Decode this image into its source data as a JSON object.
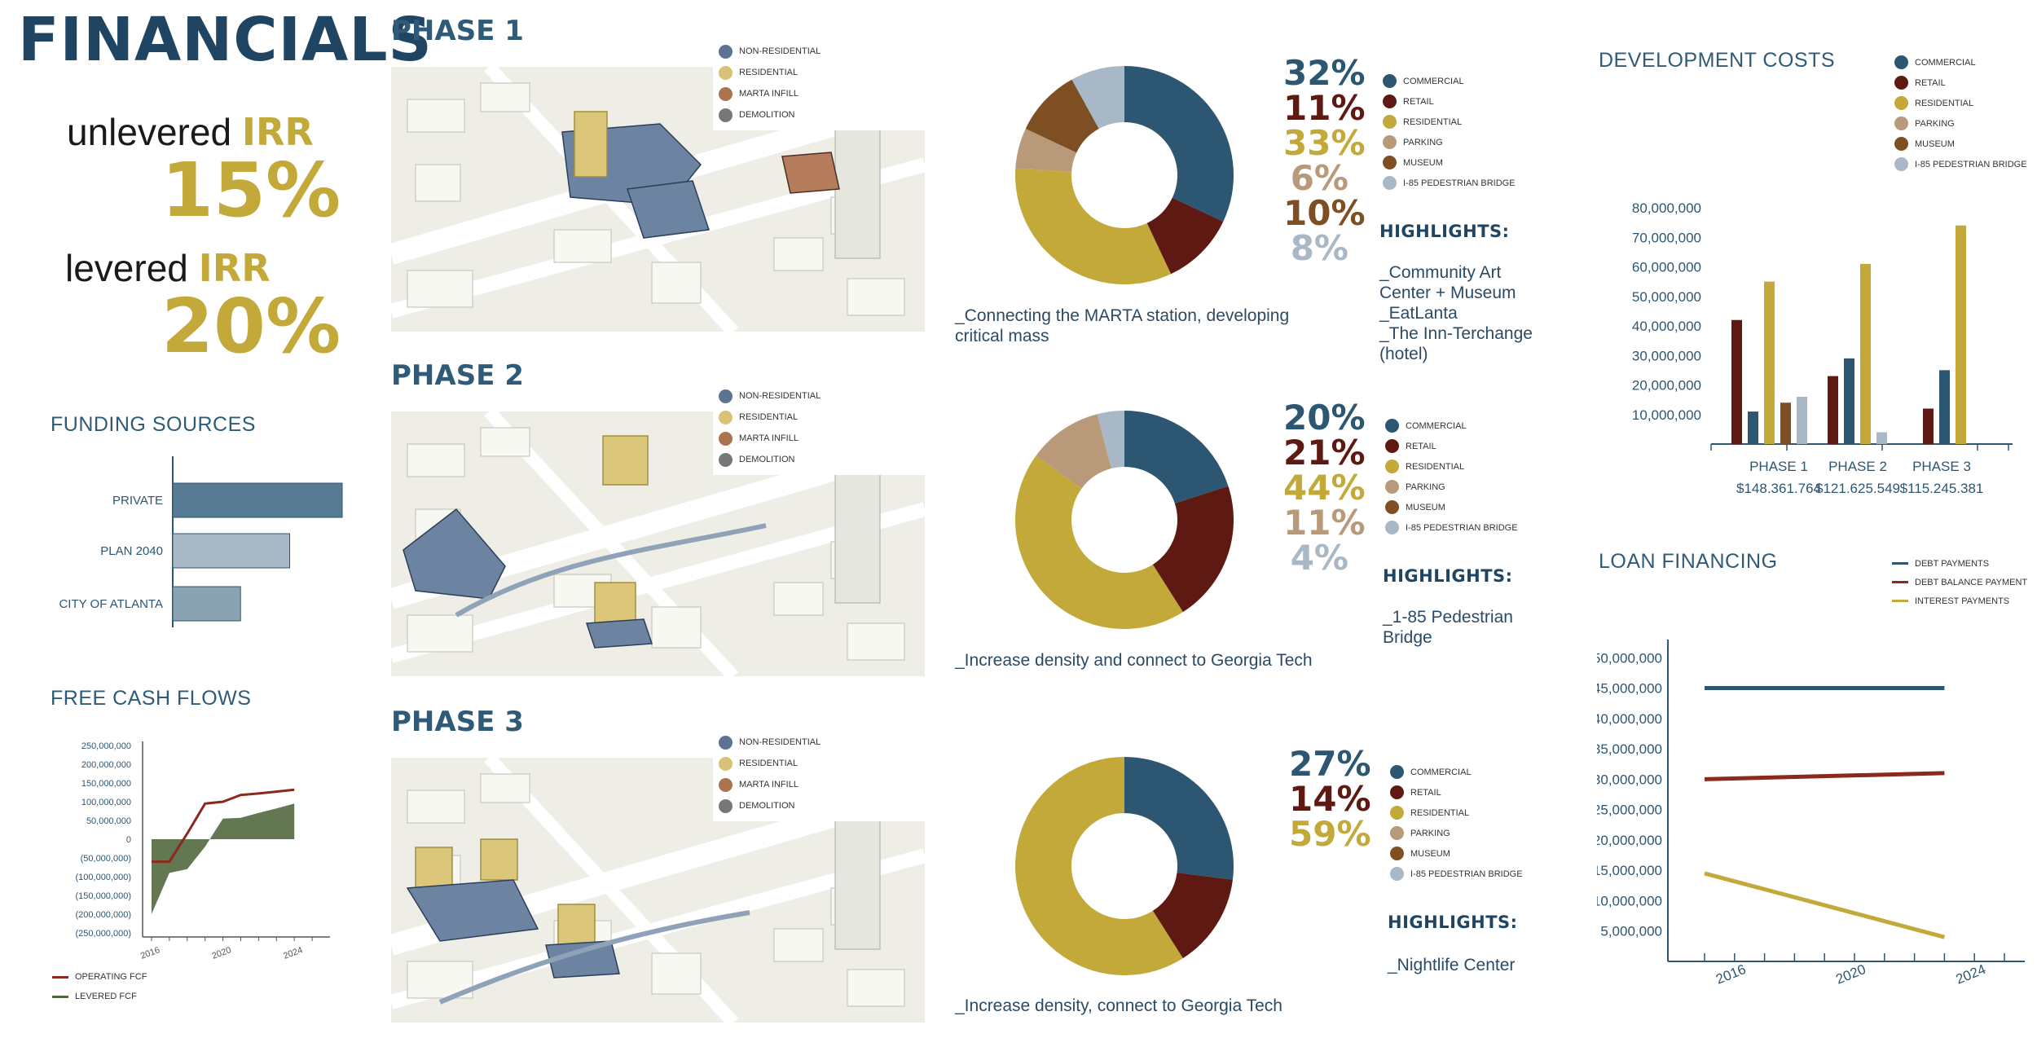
{
  "title": "FINANCIALS",
  "irr": {
    "unlevered_label": "unlevered",
    "unlevered_suffix": "IRR",
    "unlevered_value": "15%",
    "levered_label": "levered",
    "levered_suffix": "IRR",
    "levered_value": "20%"
  },
  "colors": {
    "commercial": "#2d5672",
    "retail": "#5e1a12",
    "residential": "#c3a83a",
    "parking": "#b89a7a",
    "museum": "#7d4f22",
    "bridge": "#a9b8c6",
    "navy": "#1f4563"
  },
  "map_legend": [
    "NON-RESIDENTIAL",
    "RESIDENTIAL",
    "MARTA INFILL",
    "DEMOLITION"
  ],
  "category_legend": [
    "COMMERCIAL",
    "RETAIL",
    "RESIDENTIAL",
    "PARKING",
    "MUSEUM",
    "I-85 PEDESTRIAN BRIDGE"
  ],
  "highlights_label": "HIGHLIGHTS:",
  "phases": [
    {
      "title": "PHASE 1",
      "percents": [
        "32%",
        "11%",
        "33%",
        "6%",
        "10%",
        "8%"
      ],
      "caption": "_Connecting the MARTA station, developing critical mass",
      "highlights": "_Community Art\nCenter + Museum\n_EatLanta\n_The Inn-Terchange\n(hotel)"
    },
    {
      "title": "PHASE 2",
      "percents": [
        "20%",
        "21%",
        "44%",
        "11%",
        "4%"
      ],
      "caption": "_Increase density and connect to Georgia Tech",
      "highlights": "_1-85 Pedestrian\nBridge"
    },
    {
      "title": "PHASE 3",
      "percents": [
        "27%",
        "14%",
        "59%"
      ],
      "caption": "_Increase density, connect to Georgia Tech",
      "highlights": "_Nightlife Center"
    }
  ],
  "funding": {
    "title": "FUNDING SOURCES"
  },
  "fcf": {
    "title": "FREE CASH FLOWS",
    "legend": [
      "OPERATING FCF",
      "LEVERED FCF"
    ]
  },
  "dev_costs": {
    "title": "DEVELOPMENT COSTS",
    "totals": [
      "$148,361,764",
      "$121,625,549",
      "$115,245,381"
    ]
  },
  "loan": {
    "title": "LOAN FINANCING",
    "legend": [
      "DEBT PAYMENTS",
      "DEBT BALANCE PAYMENT",
      "INTEREST PAYMENTS"
    ]
  },
  "chart_data": [
    {
      "type": "pie",
      "title": "PHASE 1",
      "labels": [
        "COMMERCIAL",
        "RETAIL",
        "RESIDENTIAL",
        "PARKING",
        "MUSEUM",
        "I-85 PEDESTRIAN BRIDGE"
      ],
      "values": [
        32,
        11,
        33,
        6,
        10,
        8
      ]
    },
    {
      "type": "pie",
      "title": "PHASE 2",
      "labels": [
        "COMMERCIAL",
        "RETAIL",
        "RESIDENTIAL",
        "MUSEUM",
        "I-85 PEDESTRIAN BRIDGE"
      ],
      "values": [
        20,
        21,
        44,
        11,
        4
      ]
    },
    {
      "type": "pie",
      "title": "PHASE 3",
      "labels": [
        "COMMERCIAL",
        "RETAIL",
        "RESIDENTIAL"
      ],
      "values": [
        27,
        14,
        59
      ]
    },
    {
      "type": "bar",
      "title": "FUNDING SOURCES",
      "orientation": "horizontal",
      "categories": [
        "PRIVATE",
        "PLAN 2040",
        "CITY OF ATLANTA"
      ],
      "values": [
        100,
        69,
        40
      ],
      "colors": [
        "#557a91",
        "#a9b8c6",
        "#8aa3b3"
      ]
    },
    {
      "type": "area",
      "title": "FREE CASH FLOWS",
      "xlim": [
        2015.5,
        2026
      ],
      "x_ticks": [
        "2016",
        "2020",
        "2024"
      ],
      "x_tick_values": [
        2016,
        2020,
        2024
      ],
      "ylim": [
        -250000000,
        250000000
      ],
      "y_ticks": [
        "250,000,000",
        "200,000,000",
        "150,000,000",
        "100,000,000",
        "50,000,000",
        "0",
        "(50,000,000)",
        "(100,000,000)",
        "(150,000,000)",
        "(200,000,000)",
        "(250,000,000)"
      ],
      "y_tick_values": [
        250000000,
        200000000,
        150000000,
        100000000,
        50000000,
        0,
        -50000000,
        -100000000,
        -150000000,
        -200000000,
        -250000000
      ],
      "series": [
        {
          "name": "OPERATING FCF",
          "color": "#8b2a1c",
          "style": "line",
          "x": [
            2016,
            2017,
            2018,
            2019,
            2020,
            2021,
            2022,
            2023,
            2024
          ],
          "y": [
            -60000000,
            -60000000,
            15000000,
            95000000,
            100000000,
            118000000,
            122000000,
            127000000,
            132000000
          ]
        },
        {
          "name": "LEVERED FCF",
          "color": "#52683f",
          "style": "area",
          "x": [
            2016,
            2017,
            2018,
            2019,
            2020,
            2021,
            2022,
            2023,
            2024
          ],
          "y": [
            -200000000,
            -90000000,
            -80000000,
            -20000000,
            55000000,
            57000000,
            70000000,
            82000000,
            95000000
          ]
        }
      ]
    },
    {
      "type": "bar",
      "title": "DEVELOPMENT COSTS",
      "categories": [
        "PHASE 1",
        "PHASE 2",
        "PHASE 3"
      ],
      "ylim": [
        0,
        80000000
      ],
      "y_ticks": [
        "80,000,000",
        "70,000,000",
        "60,000,000",
        "50,000,000",
        "40,000,000",
        "30,000,000",
        "20,000,000",
        "10,000,000"
      ],
      "y_tick_values": [
        80000000,
        70000000,
        60000000,
        50000000,
        40000000,
        30000000,
        20000000,
        10000000
      ],
      "series": [
        {
          "name": "RETAIL",
          "color": "#5e1a12",
          "values": [
            42000000,
            23000000,
            12000000
          ]
        },
        {
          "name": "COMMERCIAL",
          "color": "#2d5672",
          "values": [
            11000000,
            29000000,
            25000000
          ]
        },
        {
          "name": "RESIDENTIAL",
          "color": "#c3a83a",
          "values": [
            55000000,
            61000000,
            74000000
          ]
        },
        {
          "name": "MUSEUM",
          "color": "#7d4f22",
          "values": [
            14000000,
            0,
            0
          ]
        },
        {
          "name": "I-85 PEDESTRIAN BRIDGE",
          "color": "#a9b8c6",
          "values": [
            16000000,
            4000000,
            0
          ]
        }
      ],
      "legend": [
        "COMMERCIAL",
        "RETAIL",
        "RESIDENTIAL",
        "PARKING",
        "MUSEUM",
        "I-85 PEDESTRIAN BRIDGE"
      ]
    },
    {
      "type": "line",
      "title": "LOAN FINANCING",
      "xlim": [
        2015,
        2025
      ],
      "x_ticks": [
        "2016",
        "2020",
        "2024"
      ],
      "x_tick_values": [
        2016,
        2020,
        2024
      ],
      "ylim": [
        0,
        55000000
      ],
      "y_ticks": [
        "50,000,000",
        "45,000,000",
        "40,000,000",
        "35,000,000",
        "30,000,000",
        "25,000,000",
        "20,000,000",
        "15,000,000",
        "10,000,000",
        "5,000,000"
      ],
      "y_tick_values": [
        50000000,
        45000000,
        40000000,
        35000000,
        30000000,
        25000000,
        20000000,
        15000000,
        10000000,
        5000000
      ],
      "series": [
        {
          "name": "DEBT PAYMENTS",
          "color": "#2d5672",
          "x": [
            2015,
            2023
          ],
          "y": [
            45000000,
            45000000
          ]
        },
        {
          "name": "DEBT BALANCE PAYMENT",
          "color": "#8b2a1c",
          "x": [
            2015,
            2023
          ],
          "y": [
            30000000,
            31000000
          ]
        },
        {
          "name": "INTEREST PAYMENTS",
          "color": "#c3a83a",
          "x": [
            2015,
            2023
          ],
          "y": [
            14500000,
            4000000
          ]
        }
      ]
    }
  ]
}
